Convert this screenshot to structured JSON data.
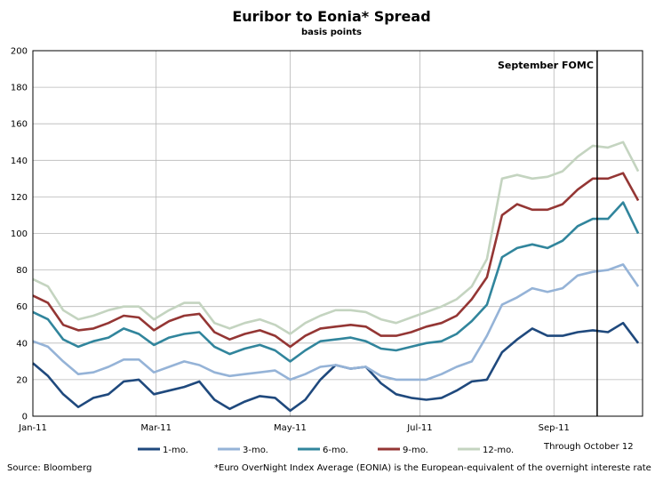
{
  "chart_data": {
    "type": "line",
    "title": "Euribor to Eonia* Spread",
    "subtitle": "basis points",
    "ylim": [
      0,
      200
    ],
    "yticks": [
      0,
      20,
      40,
      60,
      80,
      100,
      120,
      140,
      160,
      180,
      200
    ],
    "xlim": [
      "2011-01-03",
      "2011-10-12"
    ],
    "xticks": [
      {
        "label": "Jan-11",
        "date": "2011-01-03"
      },
      {
        "label": "Mar-11",
        "date": "2011-03-01"
      },
      {
        "label": "May-11",
        "date": "2011-05-02"
      },
      {
        "label": "Jul-11",
        "date": "2011-07-01"
      },
      {
        "label": "Sep-11",
        "date": "2011-09-01"
      }
    ],
    "grid": true,
    "legend_position": "bottom",
    "x": [
      "2011-01-03",
      "2011-01-10",
      "2011-01-17",
      "2011-01-24",
      "2011-01-31",
      "2011-02-07",
      "2011-02-14",
      "2011-02-21",
      "2011-02-28",
      "2011-03-07",
      "2011-03-14",
      "2011-03-21",
      "2011-03-28",
      "2011-04-04",
      "2011-04-11",
      "2011-04-18",
      "2011-04-25",
      "2011-05-02",
      "2011-05-09",
      "2011-05-16",
      "2011-05-23",
      "2011-05-30",
      "2011-06-06",
      "2011-06-13",
      "2011-06-20",
      "2011-06-27",
      "2011-07-04",
      "2011-07-11",
      "2011-07-18",
      "2011-07-25",
      "2011-08-01",
      "2011-08-08",
      "2011-08-15",
      "2011-08-22",
      "2011-08-29",
      "2011-09-05",
      "2011-09-12",
      "2011-09-19",
      "2011-09-26",
      "2011-10-03",
      "2011-10-10"
    ],
    "series": [
      {
        "name": "1-mo.",
        "color": "#1f497d",
        "values": [
          29,
          22,
          12,
          5,
          10,
          12,
          19,
          20,
          12,
          14,
          16,
          19,
          9,
          4,
          8,
          11,
          10,
          3,
          9,
          20,
          28,
          26,
          27,
          18,
          12,
          10,
          9,
          10,
          14,
          19,
          20,
          35,
          42,
          48,
          44,
          44,
          46,
          47,
          46,
          51,
          40
        ]
      },
      {
        "name": "3-mo.",
        "color": "#95b3d7",
        "values": [
          41,
          38,
          30,
          23,
          24,
          27,
          31,
          31,
          24,
          27,
          30,
          28,
          24,
          22,
          23,
          24,
          25,
          20,
          23,
          27,
          28,
          26,
          27,
          22,
          20,
          20,
          20,
          23,
          27,
          30,
          44,
          61,
          65,
          70,
          68,
          70,
          77,
          79,
          80,
          83,
          71
        ]
      },
      {
        "name": "6-mo.",
        "color": "#31859c",
        "values": [
          57,
          53,
          42,
          38,
          41,
          43,
          48,
          45,
          39,
          43,
          45,
          46,
          38,
          34,
          37,
          39,
          36,
          30,
          36,
          41,
          42,
          43,
          41,
          37,
          36,
          38,
          40,
          41,
          45,
          52,
          61,
          87,
          92,
          94,
          92,
          96,
          104,
          108,
          108,
          117,
          100
        ]
      },
      {
        "name": "9-mo.",
        "color": "#943634",
        "values": [
          66,
          62,
          50,
          47,
          48,
          51,
          55,
          54,
          47,
          52,
          55,
          56,
          46,
          42,
          45,
          47,
          44,
          38,
          44,
          48,
          49,
          50,
          49,
          44,
          44,
          46,
          49,
          51,
          55,
          64,
          76,
          110,
          116,
          113,
          113,
          116,
          124,
          130,
          130,
          133,
          118
        ]
      },
      {
        "name": "12-mo.",
        "color": "#c4d4c0",
        "values": [
          75,
          71,
          58,
          53,
          55,
          58,
          60,
          60,
          53,
          58,
          62,
          62,
          51,
          48,
          51,
          53,
          50,
          45,
          51,
          55,
          58,
          58,
          57,
          53,
          51,
          54,
          57,
          60,
          64,
          71,
          86,
          130,
          132,
          130,
          131,
          134,
          142,
          148,
          147,
          150,
          134
        ]
      }
    ],
    "annotations": [
      {
        "text": "September FOMC",
        "date": "2011-09-21"
      }
    ],
    "footnotes": {
      "through": "Through October 12",
      "source": "Source: Bloomberg",
      "definition": "*Euro OverNight Index Average (EONIA) is the European-equivalent of the overnight intereste rate"
    }
  }
}
